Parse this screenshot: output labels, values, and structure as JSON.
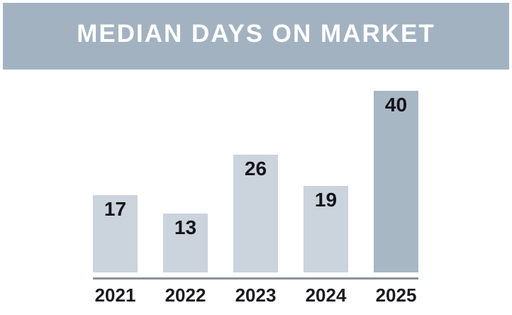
{
  "header": {
    "title": "MEDIAN DAYS ON MARKET",
    "bg_color": "#a2b2c1",
    "text_color": "#ffffff"
  },
  "chart_data": {
    "type": "bar",
    "title": "MEDIAN DAYS ON MARKET",
    "categories": [
      "2021",
      "2022",
      "2023",
      "2024",
      "2025"
    ],
    "values": [
      17,
      13,
      26,
      19,
      40
    ],
    "xlabel": "",
    "ylabel": "",
    "ylim": [
      0,
      40
    ],
    "grid": false,
    "legend": false,
    "value_label_position": "inside-top",
    "bar_colors": [
      "#cbd3dd",
      "#cbd3dd",
      "#cbd3dd",
      "#cbd3dd",
      "#a8b7c4"
    ],
    "value_label_color": "#14141a",
    "axis_line_color": "#8b9299",
    "tick_label_color": "#1a1a20"
  }
}
